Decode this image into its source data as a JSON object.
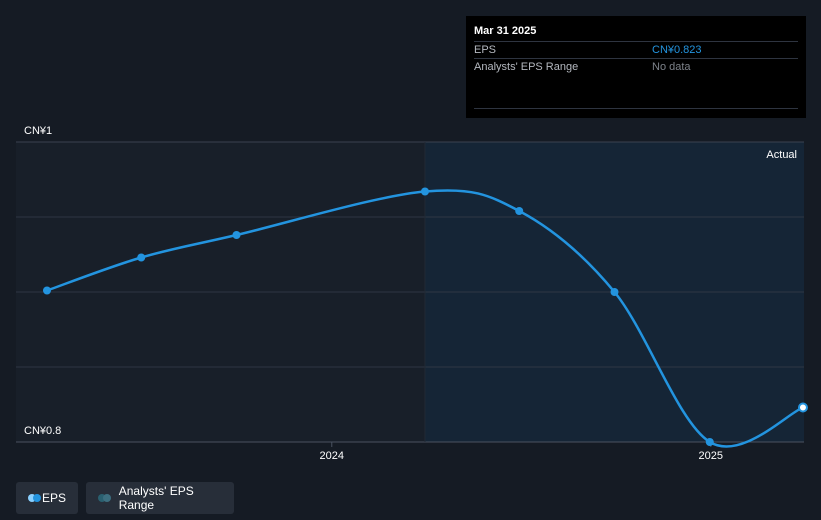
{
  "tooltip": {
    "date": "Mar 31 2025",
    "rows": [
      {
        "label": "EPS",
        "value": "CN¥0.823"
      },
      {
        "label": "Analysts' EPS Range",
        "value": "No data"
      }
    ]
  },
  "legend": {
    "eps_label": "EPS",
    "range_label": "Analysts' EPS Range"
  },
  "colors": {
    "background": "#151b24",
    "past_region": "#181f29",
    "actual_region": "#152536",
    "line": "#2394df",
    "eps_value": "#2394df",
    "no_data": "#7d828a",
    "grid": "#2e3644",
    "range_swatch": "#3d6f80"
  },
  "chart_data": {
    "type": "line",
    "region_label": "Actual",
    "y_axis": {
      "labels": [
        "CN¥1",
        "CN¥0.8"
      ],
      "range": [
        0.8,
        1.0
      ],
      "gridlines": [
        0.85,
        0.9,
        0.95
      ]
    },
    "x_axis": {
      "ticks": [
        "2024",
        "2025"
      ],
      "tick_dates": [
        "2024-01-01",
        "2025-01-01"
      ],
      "range": [
        "2023-04-01",
        "2025-04-01"
      ]
    },
    "actual_start": "2024-03-31",
    "series": [
      {
        "name": "EPS",
        "points": [
          {
            "x": "2023-04-01",
            "y": 0.901
          },
          {
            "x": "2023-07-01",
            "y": 0.923
          },
          {
            "x": "2023-10-01",
            "y": 0.938
          },
          {
            "x": "2024-03-31",
            "y": 0.967
          },
          {
            "x": "2024-06-30",
            "y": 0.954
          },
          {
            "x": "2024-09-30",
            "y": 0.9
          },
          {
            "x": "2024-12-31",
            "y": 0.8
          },
          {
            "x": "2025-03-31",
            "y": 0.823
          }
        ]
      }
    ]
  }
}
